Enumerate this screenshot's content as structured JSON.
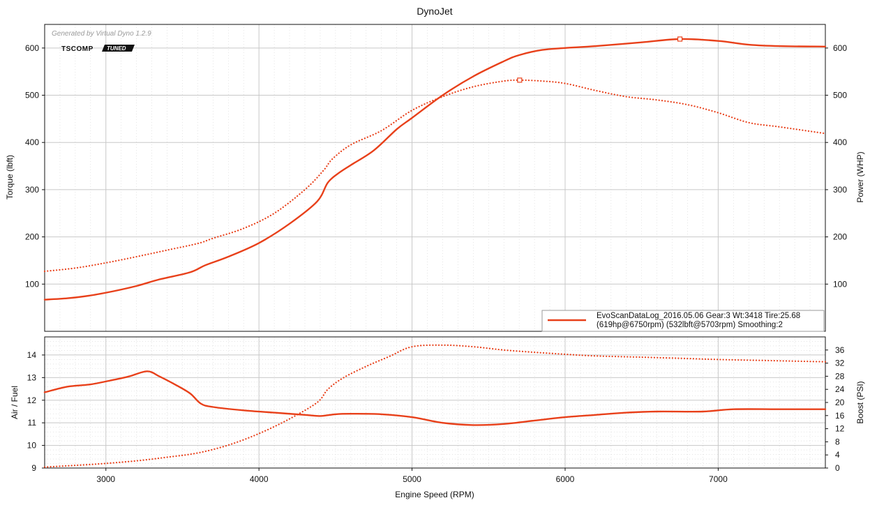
{
  "colors": {
    "series": "#e8401a",
    "grid_major": "#c8c8c8",
    "grid_minor": "#d4d4d4",
    "frame": "#111111"
  },
  "chart_data": [
    {
      "type": "line",
      "title": "DynoJet",
      "watermark": "Generated by Virtual Dyno 1.2.9",
      "logo": {
        "text": "TSCOMP",
        "badge": "TUNED"
      },
      "xlabel": "",
      "ylabel_left": "Torque (lbft)",
      "ylabel_right": "Power (WHP)",
      "xlim": [
        2600,
        7700
      ],
      "ylim_left": [
        0,
        650
      ],
      "ylim_right": [
        0,
        650
      ],
      "x_ticks": [
        "3000",
        "4000",
        "5000",
        "6000",
        "7000"
      ],
      "y_ticks_left": [
        "100",
        "200",
        "300",
        "400",
        "500",
        "600"
      ],
      "y_ticks_right": [
        "100",
        "200",
        "300",
        "400",
        "500",
        "600"
      ],
      "grid": true,
      "legend": {
        "placement": "bottom-right",
        "line1": "EvoScanDataLog_2016.05.06 Gear:3 Wt:3418 Tire:25.68",
        "line2": "(619hp@6750rpm) (532lbft@5703rpm) Smoothing:2"
      },
      "series": [
        {
          "style": "solid",
          "axis": "right",
          "x": [
            2600,
            2750,
            2900,
            3050,
            3200,
            3350,
            3550,
            3650,
            3800,
            4000,
            4200,
            4380,
            4450,
            4520,
            4600,
            4750,
            4900,
            5000,
            5200,
            5400,
            5600,
            5700,
            5850,
            6000,
            6200,
            6500,
            6750,
            7000,
            7200,
            7400,
            7700
          ],
          "y": [
            67,
            70,
            76,
            85,
            96,
            110,
            125,
            140,
            158,
            187,
            228,
            275,
            315,
            335,
            352,
            383,
            428,
            452,
            500,
            540,
            572,
            585,
            596,
            600,
            604,
            612,
            619,
            615,
            607,
            604,
            603
          ]
        },
        {
          "style": "dotted",
          "axis": "left",
          "x": [
            2600,
            2800,
            3000,
            3200,
            3400,
            3600,
            3700,
            3900,
            4100,
            4300,
            4420,
            4480,
            4600,
            4800,
            5000,
            5200,
            5400,
            5600,
            5703,
            5850,
            6000,
            6200,
            6400,
            6600,
            6800,
            7000,
            7200,
            7400,
            7700
          ],
          "y": [
            127,
            134,
            145,
            158,
            172,
            186,
            197,
            218,
            250,
            300,
            340,
            365,
            395,
            425,
            468,
            497,
            518,
            530,
            532,
            530,
            525,
            510,
            497,
            490,
            480,
            463,
            442,
            433,
            419
          ]
        }
      ]
    },
    {
      "type": "line",
      "xlabel": "Engine Speed (RPM)",
      "ylabel_left": "Air / Fuel",
      "ylabel_right": "Boost (PSI)",
      "xlim": [
        2600,
        7700
      ],
      "ylim_left": [
        9,
        14.8
      ],
      "ylim_right": [
        0,
        40
      ],
      "x_ticks": [
        "3000",
        "4000",
        "5000",
        "6000",
        "7000"
      ],
      "y_ticks_left": [
        "9",
        "10",
        "11",
        "12",
        "13",
        "14"
      ],
      "y_ticks_right": [
        "0",
        "4",
        "8",
        "12",
        "16",
        "20",
        "24",
        "28",
        "32",
        "36"
      ],
      "grid": true,
      "series": [
        {
          "style": "solid",
          "axis": "left",
          "x": [
            2600,
            2750,
            2900,
            3050,
            3150,
            3270,
            3350,
            3450,
            3550,
            3620,
            3700,
            3900,
            4100,
            4300,
            4400,
            4500,
            4600,
            4800,
            5000,
            5200,
            5400,
            5600,
            5800,
            6000,
            6200,
            6400,
            6600,
            6900,
            7100,
            7400,
            7700
          ],
          "y": [
            12.35,
            12.6,
            12.7,
            12.9,
            13.05,
            13.28,
            13.05,
            12.7,
            12.3,
            11.85,
            11.7,
            11.55,
            11.45,
            11.35,
            11.3,
            11.38,
            11.4,
            11.38,
            11.25,
            11.0,
            10.9,
            10.95,
            11.1,
            11.25,
            11.35,
            11.45,
            11.5,
            11.5,
            11.6,
            11.6,
            11.6
          ]
        },
        {
          "style": "dotted",
          "axis": "right",
          "x": [
            2600,
            2800,
            3000,
            3200,
            3400,
            3600,
            3800,
            4000,
            4200,
            4380,
            4450,
            4550,
            4700,
            4850,
            5000,
            5200,
            5400,
            5600,
            5800,
            6000,
            6200,
            6500,
            6800,
            7000,
            7300,
            7700
          ],
          "y": [
            0.3,
            0.8,
            1.4,
            2.2,
            3.3,
            4.6,
            7.0,
            10.5,
            15.0,
            20.0,
            24.0,
            27.5,
            31.0,
            34.0,
            37.0,
            37.5,
            37.0,
            36.0,
            35.3,
            34.7,
            34.2,
            33.8,
            33.4,
            33.1,
            32.8,
            32.4
          ]
        }
      ]
    }
  ]
}
